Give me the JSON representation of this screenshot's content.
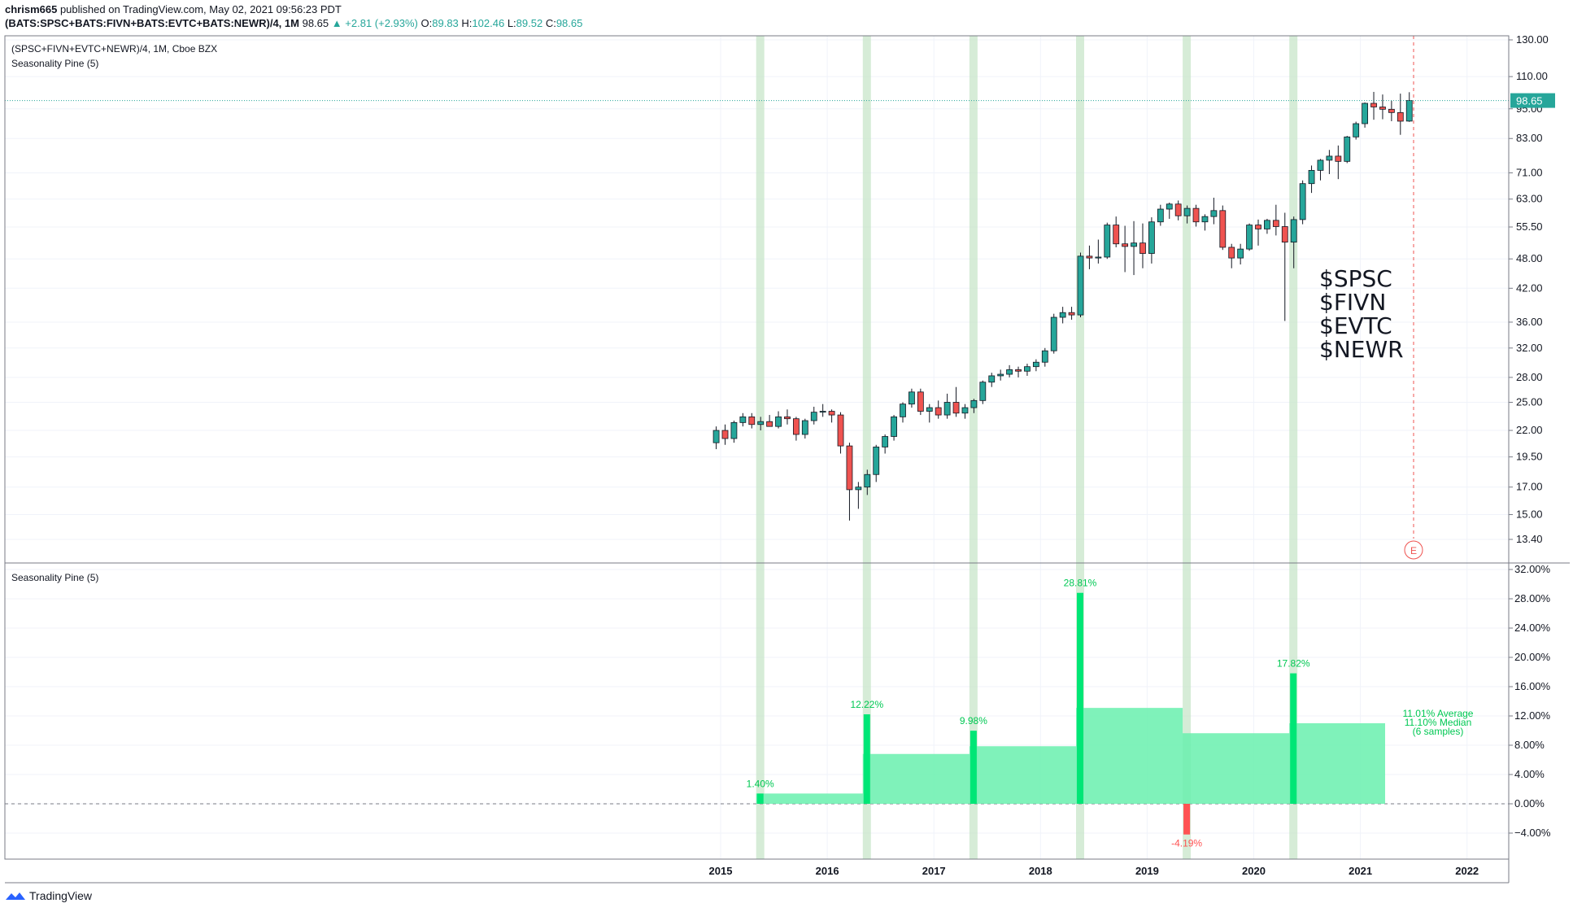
{
  "header": {
    "publisher": "chrism665",
    "published_text": "published on TradingView.com, May 02, 2021 09:56:23 PDT",
    "symbol": "(BATS:SPSC+BATS:FIVN+BATS:EVTC+BATS:NEWR)/4, 1M",
    "last": "98.65",
    "change": "+2.81 (+2.93%)",
    "o_label": "O:",
    "o": "89.83",
    "h_label": "H:",
    "h": "102.46",
    "l_label": "L:",
    "l": "89.52",
    "c_label": "C:",
    "c": "98.65"
  },
  "price_pane": {
    "title": "(SPSC+FIVN+EVTC+NEWR)/4, 1M, Cboe BZX",
    "subtitle": "Seasonality Pine (5)",
    "annotation_lines": [
      "$SPSC",
      "$FIVN",
      "$EVTC",
      "$NEWR"
    ],
    "last_price_label": "98.65",
    "earnings_marker": "E"
  },
  "seasonality_pane": {
    "title": "Seasonality Pine (5)",
    "summary_lines": [
      "11.01% Average",
      "11.10% Median",
      "(6 samples)"
    ]
  },
  "footer": {
    "brand": "TradingView"
  },
  "colors": {
    "up": "#26a69a",
    "down": "#ef5350",
    "season_pos": "#00e676",
    "season_neg": "#ff5252",
    "highlight": "#c8e6c9",
    "fill": "#69f0ae"
  },
  "chart_data": [
    {
      "type": "candlestick",
      "title": "(SPSC+FIVN+EVTC+NEWR)/4, 1M, Cboe BZX",
      "scale": "log",
      "y_ticks": [
        130,
        110,
        95,
        83,
        71,
        63,
        55.5,
        48,
        42,
        36,
        32,
        28,
        25,
        22,
        19.5,
        17,
        15,
        13.4
      ],
      "y_tick_labels": [
        "130.00",
        "110.00",
        "95.00",
        "83.00",
        "71.00",
        "63.00",
        "55.50",
        "48.00",
        "42.00",
        "36.00",
        "32.00",
        "28.00",
        "25.00",
        "22.00",
        "19.50",
        "17.00",
        "15.00",
        "13.40"
      ],
      "x_ticks": [
        2015,
        2016,
        2017,
        2018,
        2019,
        2020,
        2021,
        2022
      ],
      "x_tick_labels": [
        "2015",
        "2016",
        "2017",
        "2018",
        "2019",
        "2020",
        "2021",
        "2022"
      ],
      "start": "2014-12",
      "ohlc": [
        [
          20.8,
          22.4,
          20.2,
          22.0
        ],
        [
          22.0,
          22.6,
          20.6,
          21.2
        ],
        [
          21.2,
          23.0,
          20.8,
          22.8
        ],
        [
          22.8,
          23.8,
          22.4,
          23.4
        ],
        [
          23.4,
          23.8,
          22.2,
          22.6
        ],
        [
          22.6,
          23.4,
          22.0,
          22.9
        ],
        [
          22.9,
          23.6,
          22.4,
          22.4
        ],
        [
          22.4,
          24.0,
          22.2,
          23.4
        ],
        [
          23.4,
          24.2,
          22.6,
          23.2
        ],
        [
          23.2,
          23.4,
          21.0,
          21.6
        ],
        [
          21.6,
          23.2,
          21.2,
          23.0
        ],
        [
          23.0,
          24.5,
          22.6,
          23.9
        ],
        [
          23.9,
          24.8,
          23.4,
          24.0
        ],
        [
          24.0,
          24.2,
          22.8,
          23.6
        ],
        [
          23.6,
          23.9,
          19.8,
          20.5
        ],
        [
          20.5,
          20.8,
          14.6,
          16.8
        ],
        [
          16.8,
          17.4,
          15.4,
          17.0
        ],
        [
          17.0,
          18.4,
          16.4,
          18.0
        ],
        [
          18.0,
          20.6,
          17.4,
          20.4
        ],
        [
          20.4,
          21.6,
          19.8,
          21.4
        ],
        [
          21.4,
          23.6,
          21.0,
          23.4
        ],
        [
          23.4,
          25.0,
          22.8,
          24.8
        ],
        [
          24.8,
          26.6,
          24.4,
          26.2
        ],
        [
          26.2,
          26.6,
          23.6,
          24.0
        ],
        [
          24.0,
          24.8,
          22.8,
          24.4
        ],
        [
          24.4,
          25.2,
          23.2,
          23.6
        ],
        [
          23.6,
          26.0,
          23.2,
          25.0
        ],
        [
          25.0,
          26.8,
          23.4,
          23.8
        ],
        [
          23.8,
          24.8,
          23.2,
          24.4
        ],
        [
          24.4,
          25.4,
          23.8,
          25.2
        ],
        [
          25.2,
          27.6,
          24.8,
          27.4
        ],
        [
          27.4,
          28.6,
          26.8,
          28.2
        ],
        [
          28.2,
          29.0,
          27.6,
          28.4
        ],
        [
          28.4,
          29.6,
          28.0,
          29.0
        ],
        [
          29.0,
          29.4,
          28.0,
          28.8
        ],
        [
          28.8,
          29.8,
          28.2,
          29.4
        ],
        [
          29.4,
          30.4,
          28.8,
          30.0
        ],
        [
          30.0,
          32.0,
          29.4,
          31.6
        ],
        [
          31.6,
          37.4,
          31.2,
          36.8
        ],
        [
          36.8,
          38.6,
          35.8,
          37.6
        ],
        [
          37.6,
          38.6,
          36.4,
          37.2
        ],
        [
          37.2,
          49.4,
          36.8,
          48.6
        ],
        [
          48.6,
          51.0,
          45.8,
          48.2
        ],
        [
          48.2,
          52.4,
          47.0,
          48.4
        ],
        [
          48.4,
          56.6,
          48.0,
          56.0
        ],
        [
          56.0,
          58.2,
          50.6,
          51.4
        ],
        [
          51.4,
          55.8,
          45.2,
          50.8
        ],
        [
          50.8,
          57.0,
          44.6,
          51.6
        ],
        [
          51.6,
          56.4,
          46.0,
          49.2
        ],
        [
          49.2,
          58.0,
          47.0,
          56.8
        ],
        [
          56.8,
          61.4,
          55.8,
          60.2
        ],
        [
          60.2,
          62.0,
          57.6,
          61.6
        ],
        [
          61.6,
          62.6,
          57.2,
          58.4
        ],
        [
          58.4,
          61.2,
          56.4,
          60.4
        ],
        [
          60.4,
          61.4,
          55.6,
          56.8
        ],
        [
          56.8,
          58.8,
          54.6,
          58.2
        ],
        [
          58.2,
          63.4,
          56.2,
          59.8
        ],
        [
          59.8,
          61.2,
          50.0,
          50.6
        ],
        [
          50.6,
          51.4,
          46.0,
          48.2
        ],
        [
          48.2,
          51.4,
          46.8,
          50.2
        ],
        [
          50.2,
          56.4,
          49.8,
          56.0
        ],
        [
          56.0,
          57.4,
          51.0,
          55.0
        ],
        [
          55.0,
          57.6,
          53.8,
          57.2
        ],
        [
          57.2,
          61.4,
          53.4,
          55.6
        ],
        [
          55.6,
          59.2,
          36.2,
          51.8
        ],
        [
          51.8,
          58.2,
          46.0,
          57.4
        ],
        [
          57.4,
          68.6,
          56.2,
          67.6
        ],
        [
          67.6,
          73.4,
          64.8,
          71.8
        ],
        [
          71.8,
          75.6,
          68.6,
          75.2
        ],
        [
          75.2,
          78.8,
          70.6,
          76.6
        ],
        [
          76.6,
          80.4,
          69.0,
          74.8
        ],
        [
          74.8,
          84.0,
          74.2,
          83.6
        ],
        [
          83.6,
          89.6,
          82.6,
          88.8
        ],
        [
          88.8,
          97.8,
          87.2,
          97.4
        ],
        [
          97.4,
          102.6,
          90.4,
          95.8
        ],
        [
          95.8,
          101.4,
          90.6,
          94.8
        ],
        [
          94.8,
          98.6,
          89.8,
          93.4
        ],
        [
          93.4,
          101.8,
          84.4,
          89.8
        ],
        [
          89.83,
          102.46,
          89.52,
          98.65
        ]
      ]
    },
    {
      "type": "bar",
      "title": "Seasonality Pine (5)",
      "categories": [
        "2015",
        "2016",
        "2017",
        "2018",
        "2019",
        "2020"
      ],
      "values": [
        1.4,
        12.22,
        9.98,
        28.81,
        -4.19,
        17.82
      ],
      "value_labels": [
        "1.40%",
        "12.22%",
        "9.98%",
        "28.81%",
        "-4.19%",
        "17.82%"
      ],
      "ylim": [
        -7,
        32
      ],
      "y_ticks": [
        32,
        28,
        24,
        20,
        16,
        12,
        8,
        4,
        0,
        -4
      ],
      "y_tick_labels": [
        "32.00%",
        "28.00%",
        "24.00%",
        "20.00%",
        "16.00%",
        "12.00%",
        "8.00%",
        "4.00%",
        "0.00%",
        "−4.00%"
      ],
      "average": 11.01,
      "median": 11.1,
      "samples": 6
    }
  ]
}
